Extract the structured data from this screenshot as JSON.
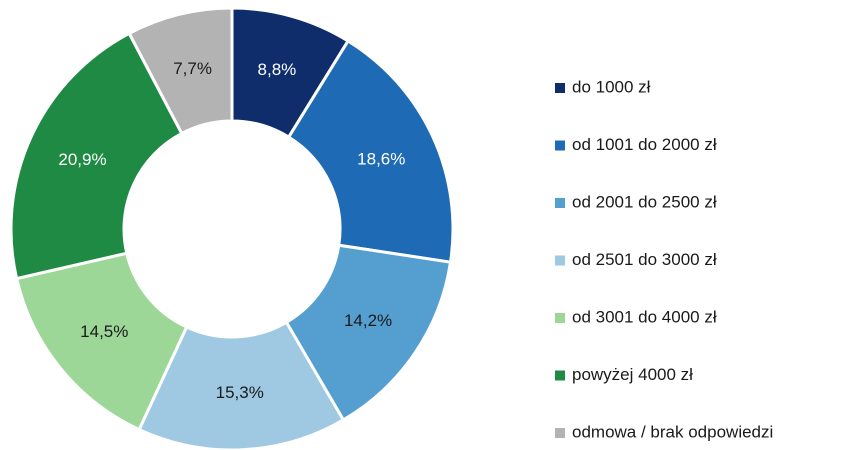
{
  "chart_data": {
    "type": "donut",
    "categories": [
      "do 1000 zł",
      "od 1001 do 2000 zł",
      "od 2001 do 2500 zł",
      "od 2501 do 3000 zł",
      "od 3001 do 4000 zł",
      "powyżej 4000 zł",
      "odmowa / brak odpowiedzi"
    ],
    "values": [
      8.8,
      18.6,
      14.2,
      15.3,
      14.5,
      20.9,
      7.7
    ],
    "value_labels": [
      "8,8%",
      "18,6%",
      "14,2%",
      "15,3%",
      "14,5%",
      "20,9%",
      "7,7%"
    ],
    "colors": [
      "#0e2d6a",
      "#1f6ab4",
      "#559fd0",
      "#9fc9e2",
      "#9dd798",
      "#1f8a43",
      "#b3b3b3"
    ],
    "label_colors": [
      "#ffffff",
      "#ffffff",
      "#1a1a1a",
      "#1a1a1a",
      "#1a1a1a",
      "#ffffff",
      "#1a1a1a"
    ],
    "legend": "right"
  }
}
